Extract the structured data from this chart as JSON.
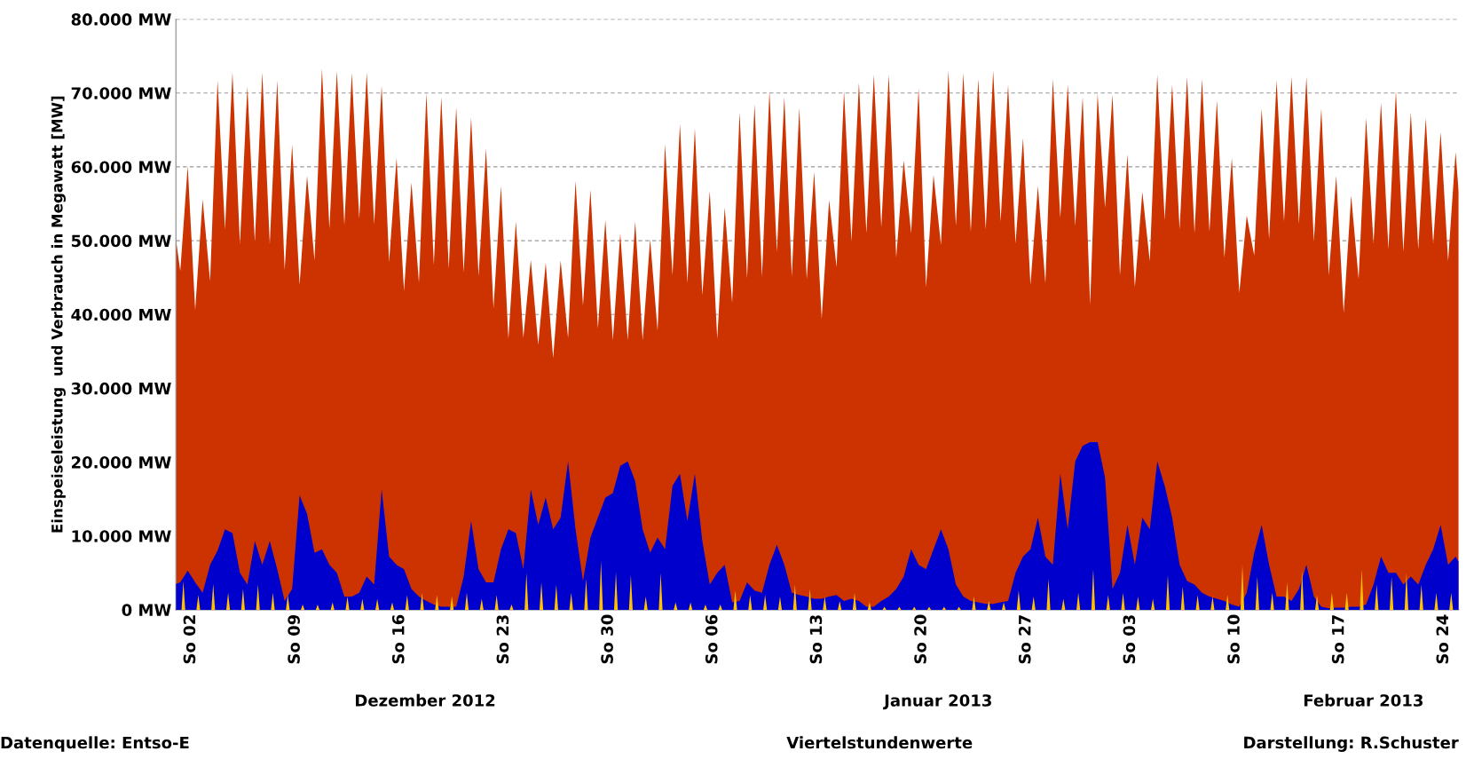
{
  "chart_data": {
    "type": "area",
    "ylabel": "Einspeiseleistung  und Verbrauch in Megawatt [MW]",
    "annotations": [
      "Dezember 2012",
      "Januar 2013",
      "Februar 2013",
      "Datenquelle: Entso-E",
      "Viertelstundenwerte",
      "Darstellung: R.Schuster"
    ],
    "xlim": [
      "2012-12-01",
      "2013-02-25"
    ],
    "xticks": [
      {
        "value": "2012-12-02",
        "label": "So 02"
      },
      {
        "value": "2012-12-09",
        "label": "So 09"
      },
      {
        "value": "2012-12-16",
        "label": "So 16"
      },
      {
        "value": "2012-12-23",
        "label": "So 23"
      },
      {
        "value": "2012-12-30",
        "label": "So 30"
      },
      {
        "value": "2013-01-06",
        "label": "So 06"
      },
      {
        "value": "2013-01-13",
        "label": "So 13"
      },
      {
        "value": "2013-01-20",
        "label": "So 20"
      },
      {
        "value": "2013-01-27",
        "label": "So 27"
      },
      {
        "value": "2013-02-03",
        "label": "So 03"
      },
      {
        "value": "2013-02-10",
        "label": "So 10"
      },
      {
        "value": "2013-02-17",
        "label": "So 17"
      },
      {
        "value": "2013-02-24",
        "label": "So 24"
      }
    ],
    "ylim": [
      0,
      80000
    ],
    "yticks": [
      {
        "value": 0,
        "label": "0 MW"
      },
      {
        "value": 10000,
        "label": "10.000 MW"
      },
      {
        "value": 20000,
        "label": "20.000 MW"
      },
      {
        "value": 30000,
        "label": "30.000 MW"
      },
      {
        "value": 40000,
        "label": "40.000 MW"
      },
      {
        "value": 50000,
        "label": "50.000 MW"
      },
      {
        "value": 60000,
        "label": "60.000 MW"
      },
      {
        "value": 70000,
        "label": "70.000 MW"
      },
      {
        "value": 80000,
        "label": "80.000 MW"
      }
    ],
    "grid": "y",
    "x": [
      "2012-12-01T00:00",
      "2012-12-01T07:00",
      "2012-12-01T19:00",
      "2012-12-02T07:00",
      "2012-12-02T19:00",
      "2012-12-03T07:00",
      "2012-12-03T19:00",
      "2012-12-04T07:00",
      "2012-12-04T19:00",
      "2012-12-05T07:00",
      "2012-12-05T19:00",
      "2012-12-06T07:00",
      "2012-12-06T19:00",
      "2012-12-07T07:00",
      "2012-12-07T19:00",
      "2012-12-08T07:00",
      "2012-12-08T19:00",
      "2012-12-09T07:00",
      "2012-12-09T19:00",
      "2012-12-10T07:00",
      "2012-12-10T19:00",
      "2012-12-11T07:00",
      "2012-12-11T19:00",
      "2012-12-12T07:00",
      "2012-12-12T19:00",
      "2012-12-13T07:00",
      "2012-12-13T19:00",
      "2012-12-14T07:00",
      "2012-12-14T19:00",
      "2012-12-15T07:00",
      "2012-12-15T19:00",
      "2012-12-16T07:00",
      "2012-12-16T19:00",
      "2012-12-17T07:00",
      "2012-12-17T19:00",
      "2012-12-18T07:00",
      "2012-12-18T19:00",
      "2012-12-19T07:00",
      "2012-12-19T19:00",
      "2012-12-20T07:00",
      "2012-12-20T19:00",
      "2012-12-21T07:00",
      "2012-12-21T19:00",
      "2012-12-22T07:00",
      "2012-12-22T19:00",
      "2012-12-23T07:00",
      "2012-12-23T19:00",
      "2012-12-24T07:00",
      "2012-12-24T19:00",
      "2012-12-25T07:00",
      "2012-12-25T19:00",
      "2012-12-26T07:00",
      "2012-12-26T19:00",
      "2012-12-27T07:00",
      "2012-12-27T19:00",
      "2012-12-28T07:00",
      "2012-12-28T19:00",
      "2012-12-29T07:00",
      "2012-12-29T19:00",
      "2012-12-30T07:00",
      "2012-12-30T19:00",
      "2012-12-31T07:00",
      "2012-12-31T19:00",
      "2013-01-01T07:00",
      "2013-01-01T19:00",
      "2013-01-02T07:00",
      "2013-01-02T19:00",
      "2013-01-03T07:00",
      "2013-01-03T19:00",
      "2013-01-04T07:00",
      "2013-01-04T19:00",
      "2013-01-05T07:00",
      "2013-01-05T19:00",
      "2013-01-06T07:00",
      "2013-01-06T19:00",
      "2013-01-07T07:00",
      "2013-01-07T19:00",
      "2013-01-08T07:00",
      "2013-01-08T19:00",
      "2013-01-09T07:00",
      "2013-01-09T19:00",
      "2013-01-10T07:00",
      "2013-01-10T19:00",
      "2013-01-11T07:00",
      "2013-01-11T19:00",
      "2013-01-12T07:00",
      "2013-01-12T19:00",
      "2013-01-13T07:00",
      "2013-01-13T19:00",
      "2013-01-14T07:00",
      "2013-01-14T19:00",
      "2013-01-15T07:00",
      "2013-01-15T19:00",
      "2013-01-16T07:00",
      "2013-01-16T19:00",
      "2013-01-17T07:00",
      "2013-01-17T19:00",
      "2013-01-18T07:00",
      "2013-01-18T19:00",
      "2013-01-19T07:00",
      "2013-01-19T19:00",
      "2013-01-20T07:00",
      "2013-01-20T19:00",
      "2013-01-21T07:00",
      "2013-01-21T19:00",
      "2013-01-22T07:00",
      "2013-01-22T19:00",
      "2013-01-23T07:00",
      "2013-01-23T19:00",
      "2013-01-24T07:00",
      "2013-01-24T19:00",
      "2013-01-25T07:00",
      "2013-01-25T19:00",
      "2013-01-26T07:00",
      "2013-01-26T19:00",
      "2013-01-27T07:00",
      "2013-01-27T19:00",
      "2013-01-28T07:00",
      "2013-01-28T19:00",
      "2013-01-29T07:00",
      "2013-01-29T19:00",
      "2013-01-30T07:00",
      "2013-01-30T19:00",
      "2013-01-31T07:00",
      "2013-01-31T19:00",
      "2013-02-01T07:00",
      "2013-02-01T19:00",
      "2013-02-02T07:00",
      "2013-02-02T19:00",
      "2013-02-03T07:00",
      "2013-02-03T19:00",
      "2013-02-04T07:00",
      "2013-02-04T19:00",
      "2013-02-05T07:00",
      "2013-02-05T19:00",
      "2013-02-06T07:00",
      "2013-02-06T19:00",
      "2013-02-07T07:00",
      "2013-02-07T19:00",
      "2013-02-08T07:00",
      "2013-02-08T19:00",
      "2013-02-09T07:00",
      "2013-02-09T19:00",
      "2013-02-10T07:00",
      "2013-02-10T19:00",
      "2013-02-11T07:00",
      "2013-02-11T19:00",
      "2013-02-12T07:00",
      "2013-02-12T19:00",
      "2013-02-13T07:00",
      "2013-02-13T19:00",
      "2013-02-14T07:00",
      "2013-02-14T19:00",
      "2013-02-15T07:00",
      "2013-02-15T19:00",
      "2013-02-16T07:00",
      "2013-02-16T19:00",
      "2013-02-17T07:00",
      "2013-02-17T19:00",
      "2013-02-18T07:00",
      "2013-02-18T19:00",
      "2013-02-19T07:00",
      "2013-02-19T19:00",
      "2013-02-20T07:00",
      "2013-02-20T19:00",
      "2013-02-21T07:00",
      "2013-02-21T19:00",
      "2013-02-22T07:00",
      "2013-02-22T19:00",
      "2013-02-23T07:00",
      "2013-02-23T19:00",
      "2013-02-24T07:00",
      "2013-02-24T19:00",
      "2013-02-25T00:00"
    ],
    "series": [
      {
        "color": "#cc3300",
        "values": [
          50200,
          45900,
          60100,
          40600,
          55600,
          44500,
          71700,
          51500,
          72800,
          49500,
          70900,
          49800,
          72800,
          49500,
          71700,
          46000,
          63000,
          44000,
          58800,
          47300,
          73300,
          51600,
          73000,
          52100,
          72700,
          53000,
          72800,
          52200,
          71000,
          47100,
          61200,
          43200,
          57900,
          44300,
          70000,
          46700,
          69500,
          46200,
          68100,
          45700,
          66700,
          45200,
          62500,
          40800,
          57400,
          36700,
          52600,
          36800,
          47400,
          35900,
          47000,
          34100,
          47300,
          36800,
          58100,
          41200,
          56900,
          38100,
          52800,
          36500,
          51000,
          36500,
          52600,
          36500,
          50200,
          37800,
          63100,
          45300,
          65800,
          44200,
          65200,
          42600,
          56700,
          36700,
          54500,
          41600,
          67400,
          44900,
          68500,
          45100,
          70300,
          48500,
          69500,
          45100,
          68000,
          44800,
          59300,
          39400,
          55500,
          46400,
          70300,
          49900,
          71400,
          51000,
          72500,
          51800,
          72500,
          47700,
          60900,
          51000,
          70600,
          43700,
          58900,
          49400,
          73000,
          52000,
          72700,
          51200,
          71900,
          51500,
          73000,
          52600,
          71100,
          49600,
          63900,
          44000,
          57400,
          44200,
          71900,
          53100,
          71100,
          52000,
          69500,
          41300,
          69900,
          54500,
          69800,
          45300,
          61700,
          43700,
          56600,
          47200,
          72500,
          52800,
          71100,
          51500,
          72200,
          51000,
          71900,
          51200,
          69000,
          47700,
          61200,
          42900,
          53400,
          48000,
          67900,
          50200,
          71700,
          52600,
          72200,
          52300,
          72200,
          49900,
          67900,
          45300,
          58800,
          40200,
          56100,
          44800,
          66600,
          49600,
          68700,
          48800,
          70300,
          48500,
          67400,
          48800,
          66600,
          49600,
          64700,
          47200,
          62000,
          56600
        ]
      },
      {
        "color": "#0000cc",
        "values": [
          3500,
          3700,
          5300,
          3700,
          2300,
          6100,
          8000,
          10900,
          10400,
          5000,
          3400,
          9300,
          6100,
          9300,
          5500,
          1200,
          2800,
          15500,
          13000,
          7700,
          8200,
          6100,
          5000,
          1800,
          1800,
          2300,
          4500,
          3400,
          16300,
          7200,
          6100,
          5500,
          2800,
          1800,
          1200,
          700,
          400,
          400,
          400,
          4500,
          12000,
          5500,
          3700,
          3700,
          8200,
          10900,
          10400,
          5500,
          16300,
          11500,
          15200,
          10900,
          12500,
          20100,
          10900,
          3900,
          9800,
          12500,
          15200,
          15800,
          19500,
          20100,
          17400,
          10900,
          7700,
          9800,
          8200,
          16800,
          18400,
          12000,
          18400,
          9300,
          3400,
          5000,
          6100,
          1000,
          1200,
          3700,
          2600,
          2300,
          6100,
          8800,
          6100,
          2300,
          2000,
          1800,
          1500,
          1500,
          1800,
          2000,
          1200,
          1500,
          1200,
          400,
          400,
          1200,
          1800,
          2800,
          4500,
          8200,
          6100,
          5500,
          8200,
          10900,
          8200,
          3400,
          1800,
          1200,
          1000,
          800,
          800,
          1000,
          1200,
          5000,
          7200,
          8200,
          12500,
          7200,
          6100,
          18400,
          10900,
          20100,
          22200,
          22700,
          22700,
          17900,
          2800,
          5000,
          11500,
          6100,
          12500,
          10900,
          20100,
          16800,
          12500,
          6100,
          3900,
          3400,
          2300,
          1800,
          1500,
          1200,
          700,
          400,
          2300,
          7700,
          11500,
          6100,
          1800,
          1800,
          1200,
          2800,
          6100,
          1800,
          400,
          200,
          300,
          300,
          400,
          400,
          700,
          3400,
          7200,
          5000,
          5000,
          3400,
          4500,
          3400,
          6100,
          8200,
          11500,
          6100,
          7200,
          6500
        ]
      },
      {
        "color": "#ffc000",
        "x": [
          "2012-12-01T09:00",
          "2012-12-01T12:00",
          "2012-12-01T15:00",
          "2012-12-02T09:00",
          "2012-12-02T12:00",
          "2012-12-02T15:00",
          "2012-12-03T09:00",
          "2012-12-03T12:00",
          "2012-12-03T15:00",
          "2012-12-04T09:00",
          "2012-12-04T12:00",
          "2012-12-04T15:00",
          "2012-12-05T09:00",
          "2012-12-05T12:00",
          "2012-12-05T15:00",
          "2012-12-06T09:00",
          "2012-12-06T12:00",
          "2012-12-06T15:00",
          "2012-12-07T09:00",
          "2012-12-07T12:00",
          "2012-12-07T15:00",
          "2012-12-08T09:00",
          "2012-12-08T12:00",
          "2012-12-08T15:00",
          "2012-12-09T09:00",
          "2012-12-09T12:00",
          "2012-12-09T15:00",
          "2012-12-10T09:00",
          "2012-12-10T12:00",
          "2012-12-10T15:00",
          "2012-12-11T09:00",
          "2012-12-11T12:00",
          "2012-12-11T15:00",
          "2012-12-12T09:00",
          "2012-12-12T12:00",
          "2012-12-12T15:00",
          "2012-12-13T09:00",
          "2012-12-13T12:00",
          "2012-12-13T15:00",
          "2012-12-14T09:00",
          "2012-12-14T12:00",
          "2012-12-14T15:00",
          "2012-12-15T09:00",
          "2012-12-15T12:00",
          "2012-12-15T15:00",
          "2012-12-16T09:00",
          "2012-12-16T12:00",
          "2012-12-16T15:00",
          "2012-12-17T09:00",
          "2012-12-17T12:00",
          "2012-12-17T15:00",
          "2012-12-18T09:00",
          "2012-12-18T12:00",
          "2012-12-18T15:00",
          "2012-12-19T09:00",
          "2012-12-19T12:00",
          "2012-12-19T15:00",
          "2012-12-20T09:00",
          "2012-12-20T12:00",
          "2012-12-20T15:00",
          "2012-12-21T09:00",
          "2012-12-21T12:00",
          "2012-12-21T15:00",
          "2012-12-22T09:00",
          "2012-12-22T12:00",
          "2012-12-22T15:00",
          "2012-12-23T09:00",
          "2012-12-23T12:00",
          "2012-12-23T15:00",
          "2012-12-24T09:00",
          "2012-12-24T12:00",
          "2012-12-24T15:00",
          "2012-12-25T09:00",
          "2012-12-25T12:00",
          "2012-12-25T15:00",
          "2012-12-26T09:00",
          "2012-12-26T12:00",
          "2012-12-26T15:00",
          "2012-12-27T09:00",
          "2012-12-27T12:00",
          "2012-12-27T15:00",
          "2012-12-28T09:00",
          "2012-12-28T12:00",
          "2012-12-28T15:00",
          "2012-12-29T09:00",
          "2012-12-29T12:00",
          "2012-12-29T15:00",
          "2012-12-30T09:00",
          "2012-12-30T12:00",
          "2012-12-30T15:00",
          "2012-12-31T09:00",
          "2012-12-31T12:00",
          "2012-12-31T15:00",
          "2013-01-01T09:00",
          "2013-01-01T12:00",
          "2013-01-01T15:00",
          "2013-01-02T09:00",
          "2013-01-02T12:00",
          "2013-01-02T15:00",
          "2013-01-03T09:00",
          "2013-01-03T12:00",
          "2013-01-03T15:00",
          "2013-01-04T09:00",
          "2013-01-04T12:00",
          "2013-01-04T15:00",
          "2013-01-05T09:00",
          "2013-01-05T12:00",
          "2013-01-05T15:00",
          "2013-01-06T09:00",
          "2013-01-06T12:00",
          "2013-01-06T15:00",
          "2013-01-07T09:00",
          "2013-01-07T12:00",
          "2013-01-07T15:00",
          "2013-01-08T09:00",
          "2013-01-08T12:00",
          "2013-01-08T15:00",
          "2013-01-09T09:00",
          "2013-01-09T12:00",
          "2013-01-09T15:00",
          "2013-01-10T09:00",
          "2013-01-10T12:00",
          "2013-01-10T15:00",
          "2013-01-11T09:00",
          "2013-01-11T12:00",
          "2013-01-11T15:00",
          "2013-01-12T09:00",
          "2013-01-12T12:00",
          "2013-01-12T15:00",
          "2013-01-13T09:00",
          "2013-01-13T12:00",
          "2013-01-13T15:00",
          "2013-01-14T09:00",
          "2013-01-14T12:00",
          "2013-01-14T15:00",
          "2013-01-15T09:00",
          "2013-01-15T12:00",
          "2013-01-15T15:00",
          "2013-01-16T09:00",
          "2013-01-16T12:00",
          "2013-01-16T15:00",
          "2013-01-17T09:00",
          "2013-01-17T12:00",
          "2013-01-17T15:00",
          "2013-01-18T09:00",
          "2013-01-18T12:00",
          "2013-01-18T15:00",
          "2013-01-19T09:00",
          "2013-01-19T12:00",
          "2013-01-19T15:00",
          "2013-01-20T09:00",
          "2013-01-20T12:00",
          "2013-01-20T15:00",
          "2013-01-21T09:00",
          "2013-01-21T12:00",
          "2013-01-21T15:00",
          "2013-01-22T09:00",
          "2013-01-22T12:00",
          "2013-01-22T15:00",
          "2013-01-23T09:00",
          "2013-01-23T12:00",
          "2013-01-23T15:00",
          "2013-01-24T09:00",
          "2013-01-24T12:00",
          "2013-01-24T15:00",
          "2013-01-25T09:00",
          "2013-01-25T12:00",
          "2013-01-25T15:00",
          "2013-01-26T09:00",
          "2013-01-26T12:00",
          "2013-01-26T15:00",
          "2013-01-27T09:00",
          "2013-01-27T12:00",
          "2013-01-27T15:00",
          "2013-01-28T09:00",
          "2013-01-28T12:00",
          "2013-01-28T15:00",
          "2013-01-29T09:00",
          "2013-01-29T12:00",
          "2013-01-29T15:00",
          "2013-01-30T09:00",
          "2013-01-30T12:00",
          "2013-01-30T15:00",
          "2013-01-31T09:00",
          "2013-01-31T12:00",
          "2013-01-31T15:00",
          "2013-02-01T09:00",
          "2013-02-01T12:00",
          "2013-02-01T15:00",
          "2013-02-02T09:00",
          "2013-02-02T12:00",
          "2013-02-02T15:00",
          "2013-02-03T09:00",
          "2013-02-03T12:00",
          "2013-02-03T15:00",
          "2013-02-04T09:00",
          "2013-02-04T12:00",
          "2013-02-04T15:00",
          "2013-02-05T09:00",
          "2013-02-05T12:00",
          "2013-02-05T15:00",
          "2013-02-06T09:00",
          "2013-02-06T12:00",
          "2013-02-06T15:00",
          "2013-02-07T09:00",
          "2013-02-07T12:00",
          "2013-02-07T15:00",
          "2013-02-08T09:00",
          "2013-02-08T12:00",
          "2013-02-08T15:00",
          "2013-02-09T09:00",
          "2013-02-09T12:00",
          "2013-02-09T15:00",
          "2013-02-10T09:00",
          "2013-02-10T12:00",
          "2013-02-10T15:00",
          "2013-02-11T09:00",
          "2013-02-11T12:00",
          "2013-02-11T15:00",
          "2013-02-12T09:00",
          "2013-02-12T12:00",
          "2013-02-12T15:00",
          "2013-02-13T09:00",
          "2013-02-13T12:00",
          "2013-02-13T15:00",
          "2013-02-14T09:00",
          "2013-02-14T12:00",
          "2013-02-14T15:00",
          "2013-02-15T09:00",
          "2013-02-15T12:00",
          "2013-02-15T15:00",
          "2013-02-16T09:00",
          "2013-02-16T12:00",
          "2013-02-16T15:00",
          "2013-02-17T09:00",
          "2013-02-17T12:00",
          "2013-02-17T15:00",
          "2013-02-18T09:00",
          "2013-02-18T12:00",
          "2013-02-18T15:00",
          "2013-02-19T09:00",
          "2013-02-19T12:00",
          "2013-02-19T15:00",
          "2013-02-20T09:00",
          "2013-02-20T12:00",
          "2013-02-20T15:00",
          "2013-02-21T09:00",
          "2013-02-21T12:00",
          "2013-02-21T15:00",
          "2013-02-22T09:00",
          "2013-02-22T12:00",
          "2013-02-22T15:00",
          "2013-02-23T09:00",
          "2013-02-23T12:00",
          "2013-02-23T15:00",
          "2013-02-24T09:00",
          "2013-02-24T12:00",
          "2013-02-24T15:00"
        ],
        "values": [
          0,
          3900,
          0,
          0,
          2000,
          0,
          0,
          3500,
          0,
          0,
          2300,
          0,
          0,
          2800,
          0,
          0,
          3400,
          0,
          0,
          2300,
          0,
          0,
          2000,
          0,
          0,
          700,
          0,
          0,
          700,
          0,
          0,
          1000,
          0,
          0,
          1800,
          0,
          0,
          1500,
          0,
          0,
          1500,
          0,
          0,
          1000,
          0,
          0,
          2000,
          0,
          0,
          2300,
          0,
          0,
          2000,
          0,
          0,
          1800,
          0,
          0,
          2300,
          0,
          0,
          1500,
          0,
          0,
          2000,
          0,
          0,
          700,
          0,
          0,
          5000,
          0,
          0,
          3700,
          0,
          0,
          3400,
          0,
          0,
          2300,
          0,
          0,
          4200,
          0,
          0,
          6600,
          0,
          0,
          5100,
          0,
          0,
          4700,
          0,
          0,
          1800,
          0,
          0,
          5000,
          0,
          0,
          1000,
          0,
          0,
          1000,
          0,
          0,
          700,
          0,
          0,
          700,
          0,
          0,
          2600,
          0,
          0,
          2000,
          0,
          0,
          2000,
          0,
          0,
          1800,
          0,
          0,
          3400,
          0,
          0,
          2800,
          0,
          0,
          1800,
          0,
          0,
          1200,
          0,
          0,
          2300,
          0,
          0,
          1000,
          0,
          0,
          400,
          0,
          0,
          400,
          0,
          0,
          400,
          0,
          0,
          400,
          0,
          0,
          400,
          0,
          0,
          400,
          0,
          0,
          1800,
          0,
          0,
          1200,
          0,
          0,
          1000,
          0,
          0,
          2600,
          0,
          0,
          1800,
          0,
          0,
          4200,
          0,
          0,
          1500,
          0,
          0,
          2300,
          0,
          0,
          5500,
          0,
          0,
          2000,
          0,
          0,
          2300,
          0,
          0,
          1800,
          0,
          0,
          1500,
          0,
          0,
          4700,
          0,
          0,
          3100,
          0,
          0,
          2000,
          0,
          0,
          1800,
          0,
          0,
          2000,
          0,
          0,
          6100,
          0,
          0,
          4500,
          0,
          0,
          2300,
          0,
          0,
          3700,
          0,
          0,
          5300,
          0,
          0,
          2000,
          0,
          0,
          2300,
          0,
          0,
          2300,
          0,
          0,
          5500,
          0,
          0,
          3400,
          0,
          0,
          4500,
          0,
          0,
          5000,
          0,
          0,
          3400,
          0,
          0,
          2300,
          0,
          0,
          2300,
          0
        ]
      }
    ]
  }
}
